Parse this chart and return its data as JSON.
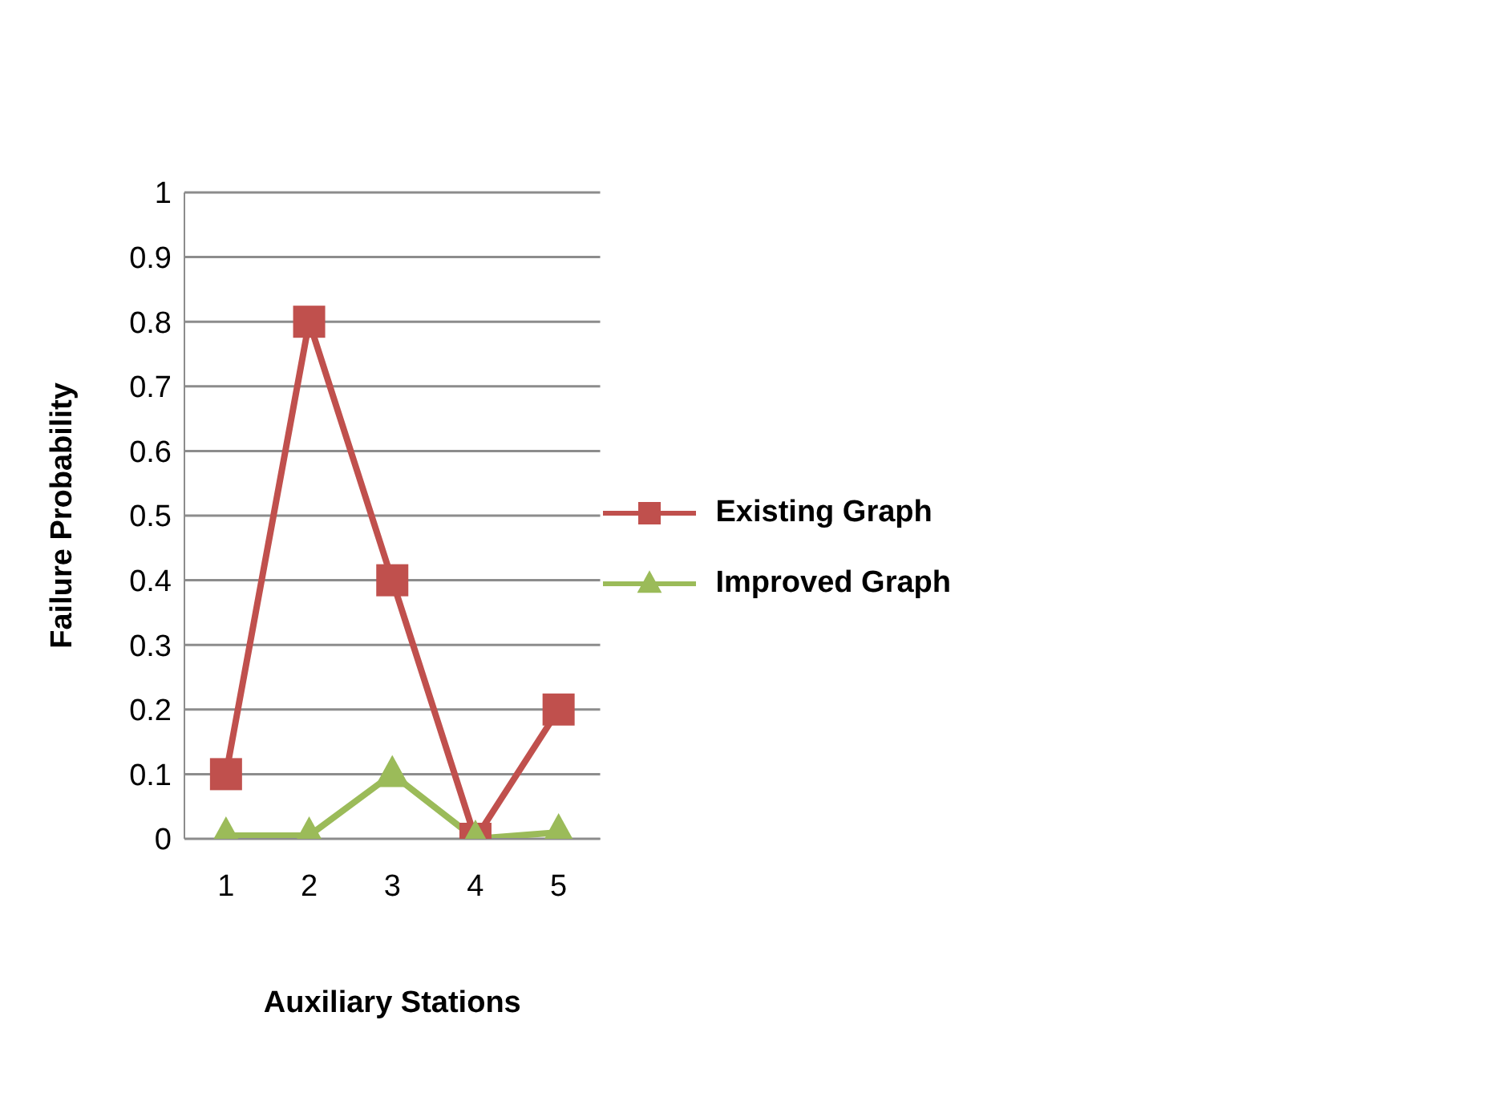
{
  "chart_data": {
    "type": "line",
    "xlabel": "Auxiliary Stations",
    "ylabel": "Failure Probability",
    "categories": [
      "1",
      "2",
      "3",
      "4",
      "5"
    ],
    "series": [
      {
        "name": "Existing Graph",
        "color": "#c0504d",
        "marker": "square",
        "values": [
          0.1,
          0.8,
          0.4,
          0,
          0.2
        ]
      },
      {
        "name": "Improved Graph",
        "color": "#9bbb59",
        "marker": "triangle",
        "values": [
          0.005,
          0.005,
          0.1,
          0,
          0.01
        ]
      }
    ],
    "ylim": [
      0,
      1
    ],
    "yticks": [
      0,
      0.1,
      0.2,
      0.3,
      0.4,
      0.5,
      0.6,
      0.7,
      0.8,
      0.9,
      1
    ],
    "grid": "y",
    "legend": "right"
  }
}
